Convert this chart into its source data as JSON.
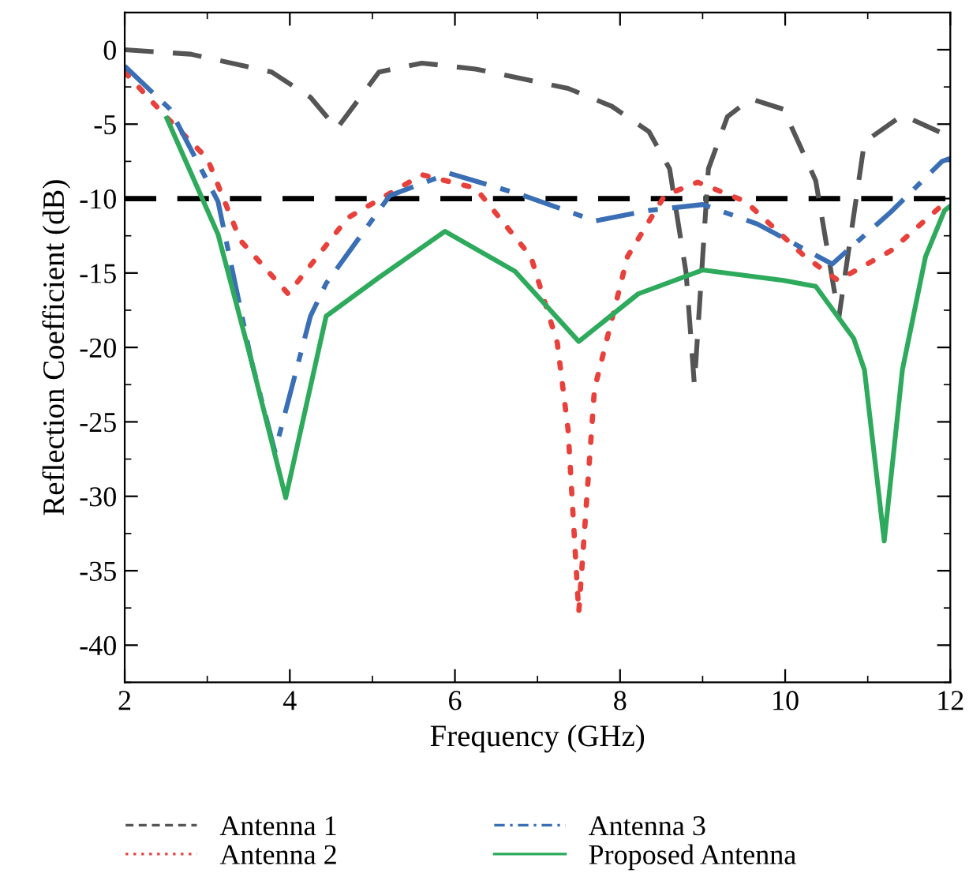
{
  "chart_data": {
    "type": "line",
    "xlabel": "Frequency (GHz)",
    "ylabel": "Reflection Coefficient (dB)",
    "xlim": [
      2,
      12
    ],
    "ylim": [
      -42.5,
      2.5
    ],
    "xticks": [
      2,
      4,
      6,
      8,
      10,
      12
    ],
    "yticks": [
      0,
      -5,
      -10,
      -15,
      -20,
      -25,
      -30,
      -35,
      -40
    ],
    "grid": false,
    "legend": "bottom",
    "marker": "none",
    "ref_lines": [
      {
        "axis": "y",
        "value": -10,
        "color": "#000000",
        "line_style": "dashed"
      }
    ],
    "series": [
      {
        "name": "Antenna 1",
        "color": "#555555",
        "line_style": "dashed",
        "x": [
          2,
          2.8,
          3.78,
          4.25,
          4.57,
          5.08,
          5.6,
          6.25,
          7.37,
          7.9,
          8.35,
          8.6,
          8.8,
          8.9,
          9.07,
          9.3,
          9.58,
          9.98,
          10.37,
          10.65,
          10.96,
          11.42,
          11.9,
          12
        ],
        "values": [
          0,
          -0.3,
          -1.5,
          -3.2,
          -5.3,
          -1.5,
          -0.9,
          -1.3,
          -2.6,
          -3.8,
          -5.5,
          -8,
          -15,
          -22.5,
          -8,
          -4.5,
          -3.3,
          -4,
          -8.8,
          -18,
          -6.2,
          -4.4,
          -5.6,
          -6
        ]
      },
      {
        "name": "Antenna 2",
        "color": "#e8403a",
        "line_style": "dotted",
        "x": [
          2,
          2.5,
          3.0,
          3.4,
          3.98,
          4.7,
          5.6,
          6.25,
          6.92,
          7.24,
          7.37,
          7.5,
          7.69,
          8.09,
          8.54,
          8.94,
          9.52,
          10.24,
          10.64,
          11.28,
          11.87,
          12
        ],
        "values": [
          -1.5,
          -4.5,
          -7.3,
          -12.8,
          -16.4,
          -11.3,
          -8.4,
          -9.3,
          -13.9,
          -19.7,
          -25.5,
          -37.8,
          -22.8,
          -13.9,
          -9.8,
          -8.9,
          -10.2,
          -13.9,
          -15.5,
          -13.5,
          -10.6,
          -10
        ]
      },
      {
        "name": "Antenna 3",
        "color": "#3a6fb5",
        "line_style": "dashdot",
        "x": [
          2,
          2.55,
          3.13,
          3.53,
          3.82,
          4.25,
          4.44,
          5.21,
          5.93,
          6.78,
          7.7,
          8.35,
          9.0,
          9.66,
          10.57,
          11.28,
          11.9,
          12
        ],
        "values": [
          -1.1,
          -4,
          -10.2,
          -20.8,
          -27,
          -17.9,
          -15.7,
          -9.8,
          -8.3,
          -9.7,
          -11.5,
          -10.8,
          -10.4,
          -11.7,
          -14.4,
          -10.9,
          -7.5,
          -7.3
        ]
      },
      {
        "name": "Proposed Antenna",
        "color": "#2eaa5c",
        "line_style": "solid",
        "x": [
          2.51,
          3.13,
          3.53,
          3.95,
          4.44,
          5.08,
          5.88,
          6.73,
          7.5,
          8.22,
          9.0,
          9.98,
          10.37,
          10.83,
          10.96,
          11.2,
          11.42,
          11.7,
          11.93,
          12
        ],
        "values": [
          -4.6,
          -12.4,
          -20.8,
          -30.1,
          -17.9,
          -15.3,
          -12.2,
          -14.9,
          -19.6,
          -16.4,
          -14.8,
          -15.5,
          -15.9,
          -19.4,
          -21.5,
          -33,
          -21.5,
          -13.9,
          -10.8,
          -10.5
        ]
      }
    ]
  }
}
